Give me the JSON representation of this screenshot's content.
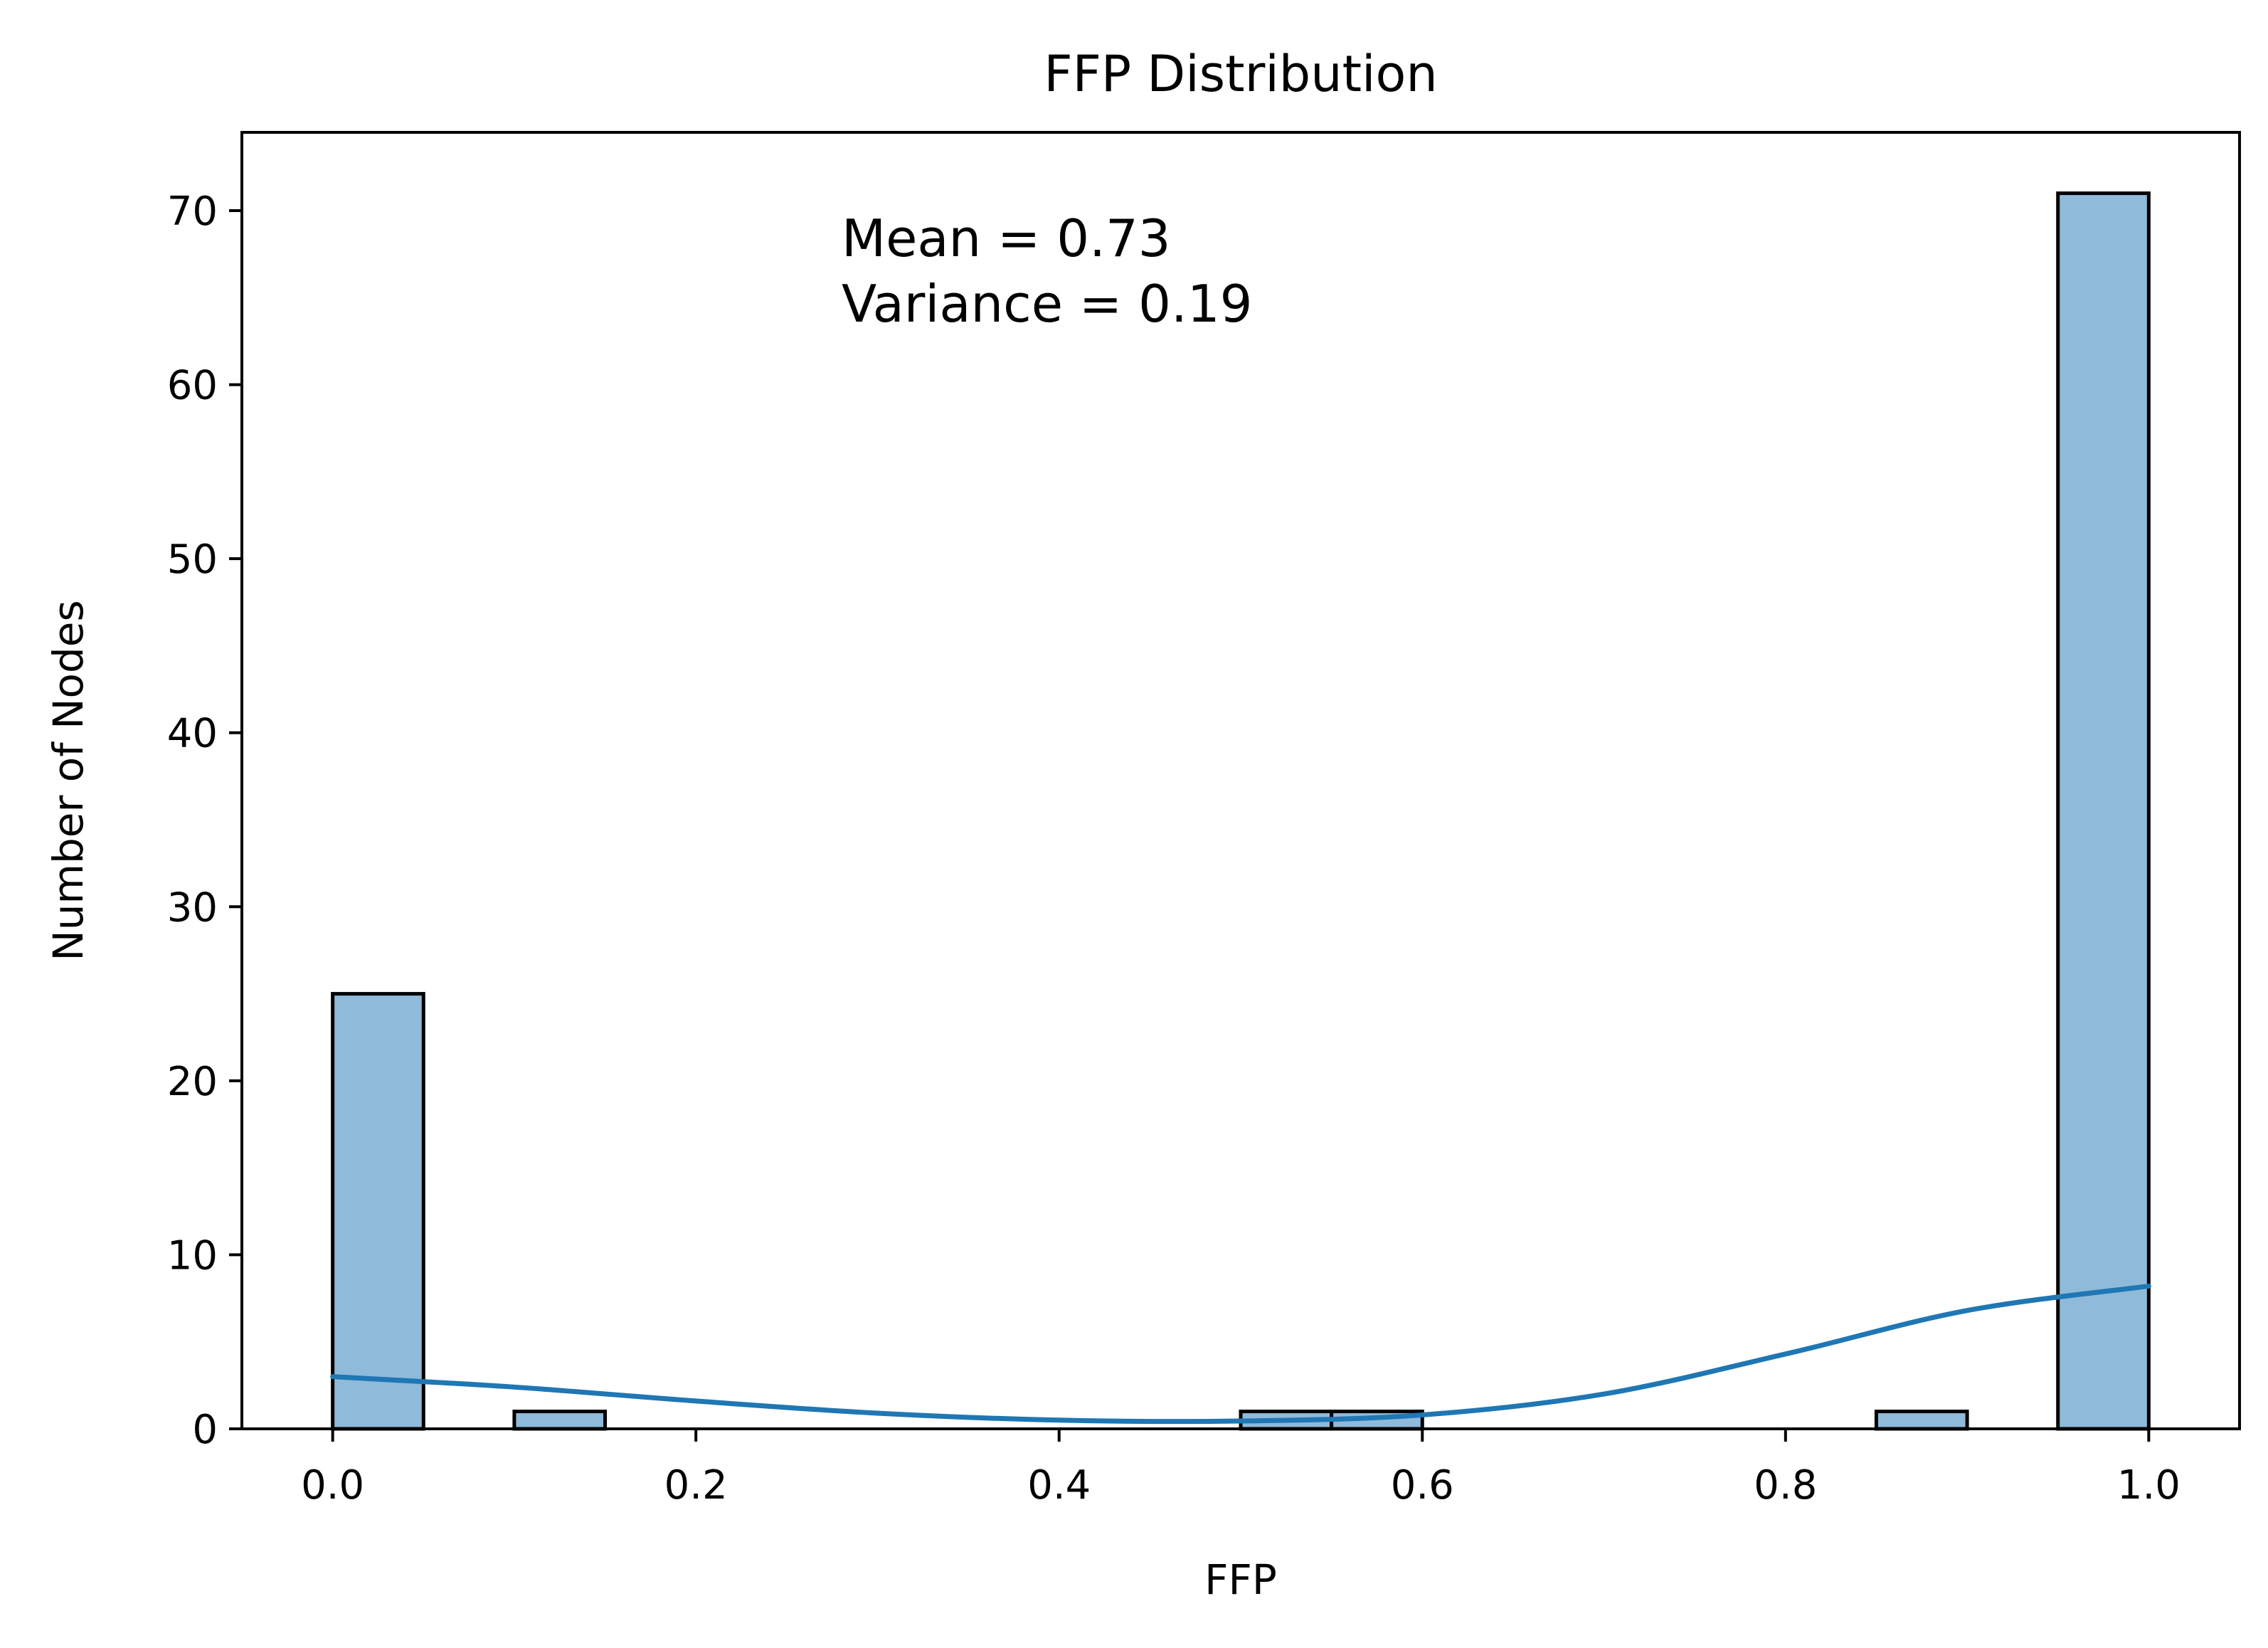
{
  "chart_data": {
    "type": "bar",
    "title": "FFP Distribution",
    "xlabel": "FFP",
    "ylabel": "Number of Nodes",
    "xlim": [
      -0.05,
      1.05
    ],
    "ylim": [
      0,
      74.5
    ],
    "xticks": [
      0.0,
      0.2,
      0.4,
      0.6,
      0.8,
      1.0
    ],
    "xtick_labels": [
      "0.0",
      "0.2",
      "0.4",
      "0.6",
      "0.8",
      "1.0"
    ],
    "yticks": [
      0,
      10,
      20,
      30,
      40,
      50,
      60,
      70
    ],
    "ytick_labels": [
      "0",
      "10",
      "20",
      "30",
      "40",
      "50",
      "60",
      "70"
    ],
    "grid": false,
    "bin_width": 0.05,
    "bins": [
      {
        "start": 0.0,
        "count": 25
      },
      {
        "start": 0.05,
        "count": 0
      },
      {
        "start": 0.1,
        "count": 1
      },
      {
        "start": 0.15,
        "count": 0
      },
      {
        "start": 0.2,
        "count": 0
      },
      {
        "start": 0.25,
        "count": 0
      },
      {
        "start": 0.3,
        "count": 0
      },
      {
        "start": 0.35,
        "count": 0
      },
      {
        "start": 0.4,
        "count": 0
      },
      {
        "start": 0.45,
        "count": 0
      },
      {
        "start": 0.5,
        "count": 1
      },
      {
        "start": 0.55,
        "count": 1
      },
      {
        "start": 0.6,
        "count": 0
      },
      {
        "start": 0.65,
        "count": 0
      },
      {
        "start": 0.7,
        "count": 0
      },
      {
        "start": 0.75,
        "count": 0
      },
      {
        "start": 0.8,
        "count": 0
      },
      {
        "start": 0.85,
        "count": 1
      },
      {
        "start": 0.9,
        "count": 0
      },
      {
        "start": 0.95,
        "count": 71
      }
    ],
    "kde": {
      "x": [
        0.0,
        0.1,
        0.2,
        0.3,
        0.4,
        0.5,
        0.6,
        0.7,
        0.8,
        0.9,
        1.0
      ],
      "y": [
        3.0,
        2.4,
        1.6,
        0.9,
        0.5,
        0.45,
        0.8,
        2.0,
        4.3,
        6.8,
        8.2
      ]
    },
    "annotations": [
      "Mean = 0.73",
      "Variance = 0.19"
    ],
    "colors": {
      "bar_fill": "#8fbad9",
      "bar_edge": "#000000",
      "kde_line": "#1f77b4"
    }
  }
}
